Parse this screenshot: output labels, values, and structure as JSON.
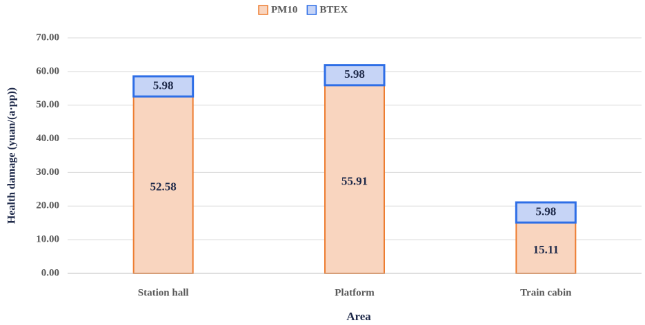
{
  "chart_data": {
    "type": "stacked_bar",
    "x_label": "Area",
    "y_label": "Health damage (yuan/(a·pp))",
    "categories": [
      "Station hall",
      "Platform",
      "Train cabin"
    ],
    "series": [
      {
        "name": "PM10",
        "color": "#f9d5bf",
        "stroke": "#ed7d31",
        "values": [
          52.58,
          55.91,
          15.11
        ]
      },
      {
        "name": "BTEX",
        "color": "#c6d4f6",
        "stroke": "#2e6ee6",
        "values": [
          5.98,
          5.98,
          5.98
        ]
      }
    ],
    "ylim": [
      0,
      70
    ],
    "yticks": [
      {
        "value": 0,
        "label": "0.00"
      },
      {
        "value": 10,
        "label": "10.00"
      },
      {
        "value": 20,
        "label": "20.00"
      },
      {
        "value": 30,
        "label": "30.00"
      },
      {
        "value": 40,
        "label": "40.00"
      },
      {
        "value": 50,
        "label": "50.00"
      },
      {
        "value": 60,
        "label": "60.00"
      },
      {
        "value": 70,
        "label": "70.00"
      }
    ],
    "grid": true,
    "legend": "top"
  }
}
